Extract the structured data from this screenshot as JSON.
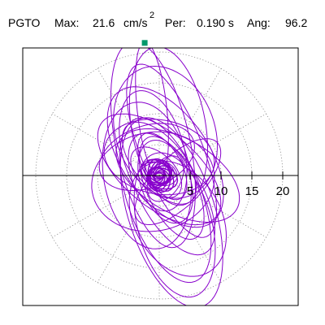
{
  "header": {
    "station": "PGTO",
    "max_label": "Max:",
    "max_value": "21.6",
    "max_unit": "cm/s",
    "max_unit_exp": "2",
    "per_label": "Per:",
    "per_value": "0.190 s",
    "ang_label": "Ang:",
    "ang_value": "96.2"
  },
  "chart_data": {
    "type": "line",
    "subtype": "polar-hodogram",
    "title": "PGTO Max: 21.6 cm/s2 Per: 0.190 s Ang: 96.2",
    "radial_ticks": [
      5,
      10,
      15,
      20
    ],
    "rlim": [
      0,
      22.5
    ],
    "grid": "dotted polar rings at 5, 10, 15, 20 and radial spokes every 30 deg",
    "series": [
      {
        "color": "#8800cc",
        "loops": [
          {
            "cx": 0.5,
            "cy": 0.0,
            "a": 2,
            "b": 1.5,
            "rot": 30
          },
          {
            "cx": 0.0,
            "cy": 0.5,
            "a": 3,
            "b": 2,
            "rot": -20
          },
          {
            "cx": 1.0,
            "cy": -0.5,
            "a": 4,
            "b": 2.5,
            "rot": 60
          },
          {
            "cx": -0.5,
            "cy": 0.5,
            "a": 5,
            "b": 3,
            "rot": -45
          },
          {
            "cx": 0.5,
            "cy": 1.5,
            "a": 6,
            "b": 3,
            "rot": -60
          },
          {
            "cx": 1.0,
            "cy": -1.0,
            "a": 7,
            "b": 4,
            "rot": -70
          },
          {
            "cx": 0.0,
            "cy": 2.0,
            "a": 8,
            "b": 4,
            "rot": -50
          },
          {
            "cx": 2.0,
            "cy": -2.0,
            "a": 9,
            "b": 4,
            "rot": -65
          },
          {
            "cx": -1.0,
            "cy": 4.0,
            "a": 10,
            "b": 5,
            "rot": -75
          },
          {
            "cx": 2.0,
            "cy": -3.0,
            "a": 11,
            "b": 5,
            "rot": -60
          },
          {
            "cx": 0.0,
            "cy": 1.0,
            "a": 12,
            "b": 6,
            "rot": -40
          },
          {
            "cx": 1.0,
            "cy": 3.0,
            "a": 13,
            "b": 7,
            "rot": -55
          },
          {
            "cx": -2.0,
            "cy": 0.0,
            "a": 12,
            "b": 7,
            "rot": -80
          },
          {
            "cx": 1.0,
            "cy": -4.0,
            "a": 14,
            "b": 6,
            "rot": -70
          },
          {
            "cx": 3.0,
            "cy": 0.0,
            "a": 11,
            "b": 6,
            "rot": -30
          },
          {
            "cx": -1.0,
            "cy": -1.0,
            "a": 10,
            "b": 8,
            "rot": 10
          },
          {
            "cx": 0.0,
            "cy": 3.0,
            "a": 9,
            "b": 6,
            "rot": -10
          },
          {
            "cx": 2.0,
            "cy": 4.0,
            "a": 15,
            "b": 5,
            "rot": -68
          },
          {
            "cx": -1.0,
            "cy": 5.0,
            "a": 17,
            "b": 6,
            "rot": -78
          },
          {
            "cx": 2.0,
            "cy": -6.0,
            "a": 16,
            "b": 7,
            "rot": -72
          },
          {
            "cx": -2.0,
            "cy": 3.0,
            "a": 8,
            "b": 5,
            "rot": 20
          },
          {
            "cx": 3.0,
            "cy": -1.0,
            "a": 9,
            "b": 4,
            "rot": 45
          },
          {
            "cx": 1.5,
            "cy": 8.0,
            "a": 13,
            "b": 6,
            "rot": -80
          },
          {
            "cx": 2.5,
            "cy": -8.0,
            "a": 12,
            "b": 6,
            "rot": -75
          },
          {
            "cx": 1.0,
            "cy": 7.0,
            "a": 11,
            "b": 8,
            "rot": -70
          },
          {
            "cx": 3.0,
            "cy": -7.0,
            "a": 10,
            "b": 7,
            "rot": -60
          },
          {
            "cx": 0.0,
            "cy": 0.0,
            "a": 1,
            "b": 0.6,
            "rot": 0
          }
        ],
        "peak_loop": {
          "theta_deg": 96.2,
          "r": 21.6,
          "tip": [
            -2.35,
            21.47
          ]
        },
        "peak_marker_color": "#00996a"
      }
    ]
  }
}
